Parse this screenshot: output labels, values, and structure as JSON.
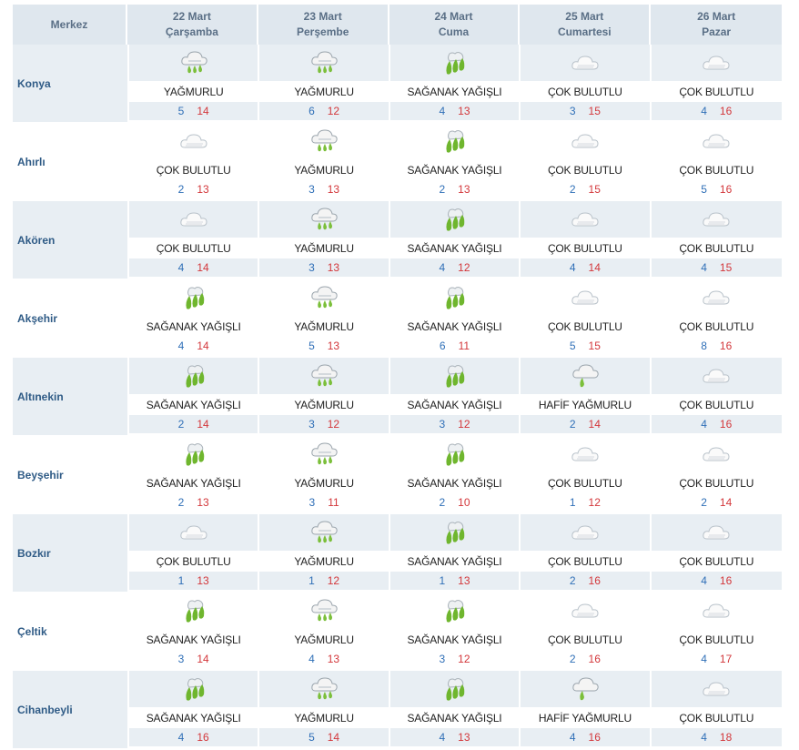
{
  "header": {
    "first_col_label": "Merkez",
    "days": [
      {
        "date": "22 Mart",
        "weekday": "Çarşamba"
      },
      {
        "date": "23 Mart",
        "weekday": "Perşembe"
      },
      {
        "date": "24 Mart",
        "weekday": "Cuma"
      },
      {
        "date": "25 Mart",
        "weekday": "Cumartesi"
      },
      {
        "date": "26 Mart",
        "weekday": "Pazar"
      }
    ]
  },
  "icon_names": {
    "rain": "rain-cloud-icon",
    "shower": "shower-icon",
    "cloudy": "cloud-icon",
    "light_rain": "light-rain-icon"
  },
  "colors": {
    "min_temp": "#2f6fb7",
    "max_temp": "#d3373b",
    "city_name": "#2f5b86"
  },
  "cities": [
    {
      "name": "Konya",
      "days": [
        {
          "icon": "rain",
          "condition": "YAĞMURLU",
          "min": "5",
          "max": "14"
        },
        {
          "icon": "rain",
          "condition": "YAĞMURLU",
          "min": "6",
          "max": "12"
        },
        {
          "icon": "shower",
          "condition": "SAĞANAK YAĞIŞLI",
          "min": "4",
          "max": "13"
        },
        {
          "icon": "cloudy",
          "condition": "ÇOK BULUTLU",
          "min": "3",
          "max": "15"
        },
        {
          "icon": "cloudy",
          "condition": "ÇOK BULUTLU",
          "min": "4",
          "max": "16"
        }
      ]
    },
    {
      "name": "Ahırlı",
      "days": [
        {
          "icon": "cloudy",
          "condition": "ÇOK BULUTLU",
          "min": "2",
          "max": "13"
        },
        {
          "icon": "rain",
          "condition": "YAĞMURLU",
          "min": "3",
          "max": "13"
        },
        {
          "icon": "shower",
          "condition": "SAĞANAK YAĞIŞLI",
          "min": "2",
          "max": "13"
        },
        {
          "icon": "cloudy",
          "condition": "ÇOK BULUTLU",
          "min": "2",
          "max": "15"
        },
        {
          "icon": "cloudy",
          "condition": "ÇOK BULUTLU",
          "min": "5",
          "max": "16"
        }
      ]
    },
    {
      "name": "Akören",
      "days": [
        {
          "icon": "cloudy",
          "condition": "ÇOK BULUTLU",
          "min": "4",
          "max": "14"
        },
        {
          "icon": "rain",
          "condition": "YAĞMURLU",
          "min": "3",
          "max": "13"
        },
        {
          "icon": "shower",
          "condition": "SAĞANAK YAĞIŞLI",
          "min": "4",
          "max": "12"
        },
        {
          "icon": "cloudy",
          "condition": "ÇOK BULUTLU",
          "min": "4",
          "max": "14"
        },
        {
          "icon": "cloudy",
          "condition": "ÇOK BULUTLU",
          "min": "4",
          "max": "15"
        }
      ]
    },
    {
      "name": "Akşehir",
      "days": [
        {
          "icon": "shower",
          "condition": "SAĞANAK YAĞIŞLI",
          "min": "4",
          "max": "14"
        },
        {
          "icon": "rain",
          "condition": "YAĞMURLU",
          "min": "5",
          "max": "13"
        },
        {
          "icon": "shower",
          "condition": "SAĞANAK YAĞIŞLI",
          "min": "6",
          "max": "11"
        },
        {
          "icon": "cloudy",
          "condition": "ÇOK BULUTLU",
          "min": "5",
          "max": "15"
        },
        {
          "icon": "cloudy",
          "condition": "ÇOK BULUTLU",
          "min": "8",
          "max": "16"
        }
      ]
    },
    {
      "name": "Altınekin",
      "days": [
        {
          "icon": "shower",
          "condition": "SAĞANAK YAĞIŞLI",
          "min": "2",
          "max": "14"
        },
        {
          "icon": "rain",
          "condition": "YAĞMURLU",
          "min": "3",
          "max": "12"
        },
        {
          "icon": "shower",
          "condition": "SAĞANAK YAĞIŞLI",
          "min": "3",
          "max": "12"
        },
        {
          "icon": "light_rain",
          "condition": "HAFİF YAĞMURLU",
          "min": "2",
          "max": "14"
        },
        {
          "icon": "cloudy",
          "condition": "ÇOK BULUTLU",
          "min": "4",
          "max": "16"
        }
      ]
    },
    {
      "name": "Beyşehir",
      "days": [
        {
          "icon": "shower",
          "condition": "SAĞANAK YAĞIŞLI",
          "min": "2",
          "max": "13"
        },
        {
          "icon": "rain",
          "condition": "YAĞMURLU",
          "min": "3",
          "max": "11"
        },
        {
          "icon": "shower",
          "condition": "SAĞANAK YAĞIŞLI",
          "min": "2",
          "max": "10"
        },
        {
          "icon": "cloudy",
          "condition": "ÇOK BULUTLU",
          "min": "1",
          "max": "12"
        },
        {
          "icon": "cloudy",
          "condition": "ÇOK BULUTLU",
          "min": "2",
          "max": "14"
        }
      ]
    },
    {
      "name": "Bozkır",
      "days": [
        {
          "icon": "cloudy",
          "condition": "ÇOK BULUTLU",
          "min": "1",
          "max": "13"
        },
        {
          "icon": "rain",
          "condition": "YAĞMURLU",
          "min": "1",
          "max": "12"
        },
        {
          "icon": "shower",
          "condition": "SAĞANAK YAĞIŞLI",
          "min": "1",
          "max": "13"
        },
        {
          "icon": "cloudy",
          "condition": "ÇOK BULUTLU",
          "min": "2",
          "max": "16"
        },
        {
          "icon": "cloudy",
          "condition": "ÇOK BULUTLU",
          "min": "4",
          "max": "16"
        }
      ]
    },
    {
      "name": "Çeltik",
      "days": [
        {
          "icon": "shower",
          "condition": "SAĞANAK YAĞIŞLI",
          "min": "3",
          "max": "14"
        },
        {
          "icon": "rain",
          "condition": "YAĞMURLU",
          "min": "4",
          "max": "13"
        },
        {
          "icon": "shower",
          "condition": "SAĞANAK YAĞIŞLI",
          "min": "3",
          "max": "12"
        },
        {
          "icon": "cloudy",
          "condition": "ÇOK BULUTLU",
          "min": "2",
          "max": "16"
        },
        {
          "icon": "cloudy",
          "condition": "ÇOK BULUTLU",
          "min": "4",
          "max": "17"
        }
      ]
    },
    {
      "name": "Cihanbeyli",
      "days": [
        {
          "icon": "shower",
          "condition": "SAĞANAK YAĞIŞLI",
          "min": "4",
          "max": "16"
        },
        {
          "icon": "rain",
          "condition": "YAĞMURLU",
          "min": "5",
          "max": "14"
        },
        {
          "icon": "shower",
          "condition": "SAĞANAK YAĞIŞLI",
          "min": "4",
          "max": "13"
        },
        {
          "icon": "light_rain",
          "condition": "HAFİF YAĞMURLU",
          "min": "4",
          "max": "16"
        },
        {
          "icon": "cloudy",
          "condition": "ÇOK BULUTLU",
          "min": "4",
          "max": "18"
        }
      ]
    }
  ]
}
